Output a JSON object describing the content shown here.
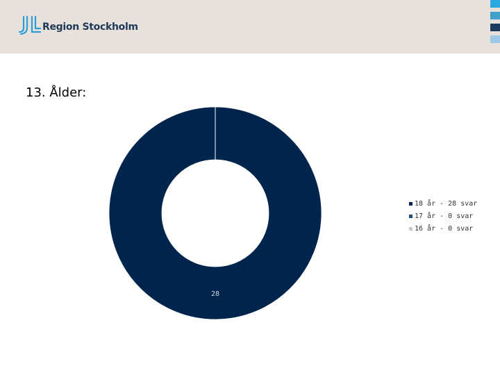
{
  "header": {
    "brand_name": "Region Stockholm",
    "background_color": "#e8e1db",
    "logo_icon": "region-stockholm-logo-icon",
    "squares": [
      "#2aa8df",
      "#3fa0cc",
      "#1e3a5f",
      "#9ec8e8",
      "#d6e6f2"
    ]
  },
  "page": {
    "title": "13. Ålder:"
  },
  "chart_data": {
    "type": "pie",
    "subtype": "donut",
    "categories": [
      "18 år",
      "17 år",
      "16 år"
    ],
    "values": [
      28,
      0,
      0
    ],
    "colors": [
      "#00254c",
      "#1e4f7a",
      "#c8c8c8"
    ],
    "data_labels": [
      "28"
    ],
    "legend": {
      "placement": "right",
      "entries": [
        "18 år - 28 svar",
        "17 år - 0 svar",
        "16 år - 0 svar"
      ]
    }
  }
}
